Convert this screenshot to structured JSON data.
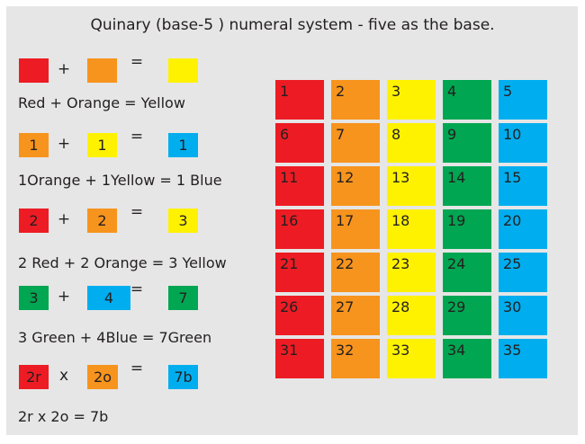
{
  "title": "Quinary (base-5 ) numeral system - five as the base.",
  "colors": {
    "red": "#ed1c24",
    "orange": "#f7941d",
    "yellow": "#fff200",
    "green": "#00a651",
    "blue": "#00aeef",
    "background": "#e6e6e6"
  },
  "equations": [
    {
      "a": {
        "label": "",
        "color": "red"
      },
      "op": "+",
      "b": {
        "label": "",
        "color": "orange"
      },
      "eq": "=",
      "c": {
        "label": "",
        "color": "yellow"
      },
      "text": "Red  +  Orange  =  Yellow"
    },
    {
      "a": {
        "label": "1",
        "color": "orange"
      },
      "op": "+",
      "b": {
        "label": "1",
        "color": "yellow"
      },
      "eq": "=",
      "c": {
        "label": "1",
        "color": "blue"
      },
      "text": "1Orange  +  1Yellow  =  1 Blue"
    },
    {
      "a": {
        "label": "2",
        "color": "red"
      },
      "op": "+",
      "b": {
        "label": "2",
        "color": "orange"
      },
      "eq": "=",
      "c": {
        "label": "3",
        "color": "yellow"
      },
      "text": "2 Red + 2 Orange = 3 Yellow"
    },
    {
      "a": {
        "label": "3",
        "color": "green"
      },
      "op": "+",
      "b": {
        "label": "4",
        "color": "blue"
      },
      "eq": "=",
      "c": {
        "label": "7",
        "color": "green"
      },
      "text": "3 Green + 4Blue = 7Green"
    },
    {
      "a": {
        "label": "2r",
        "color": "red"
      },
      "op": "x",
      "b": {
        "label": "2o",
        "color": "orange"
      },
      "eq": "=",
      "c": {
        "label": "7b",
        "color": "blue"
      },
      "text": "2r  x  2o  =  7b"
    }
  ],
  "grid": {
    "column_colors": [
      "red",
      "orange",
      "yellow",
      "green",
      "blue"
    ],
    "rows": [
      [
        "1",
        "2",
        "3",
        "4",
        "5"
      ],
      [
        "6",
        "7",
        "8",
        "9",
        "10"
      ],
      [
        "11",
        "12",
        "13",
        "14",
        "15"
      ],
      [
        "16",
        "17",
        "18",
        "19",
        "20"
      ],
      [
        "21",
        "22",
        "23",
        "24",
        "25"
      ],
      [
        "26",
        "27",
        "28",
        "29",
        "30"
      ],
      [
        "31",
        "32",
        "33",
        "34",
        "35"
      ]
    ]
  }
}
